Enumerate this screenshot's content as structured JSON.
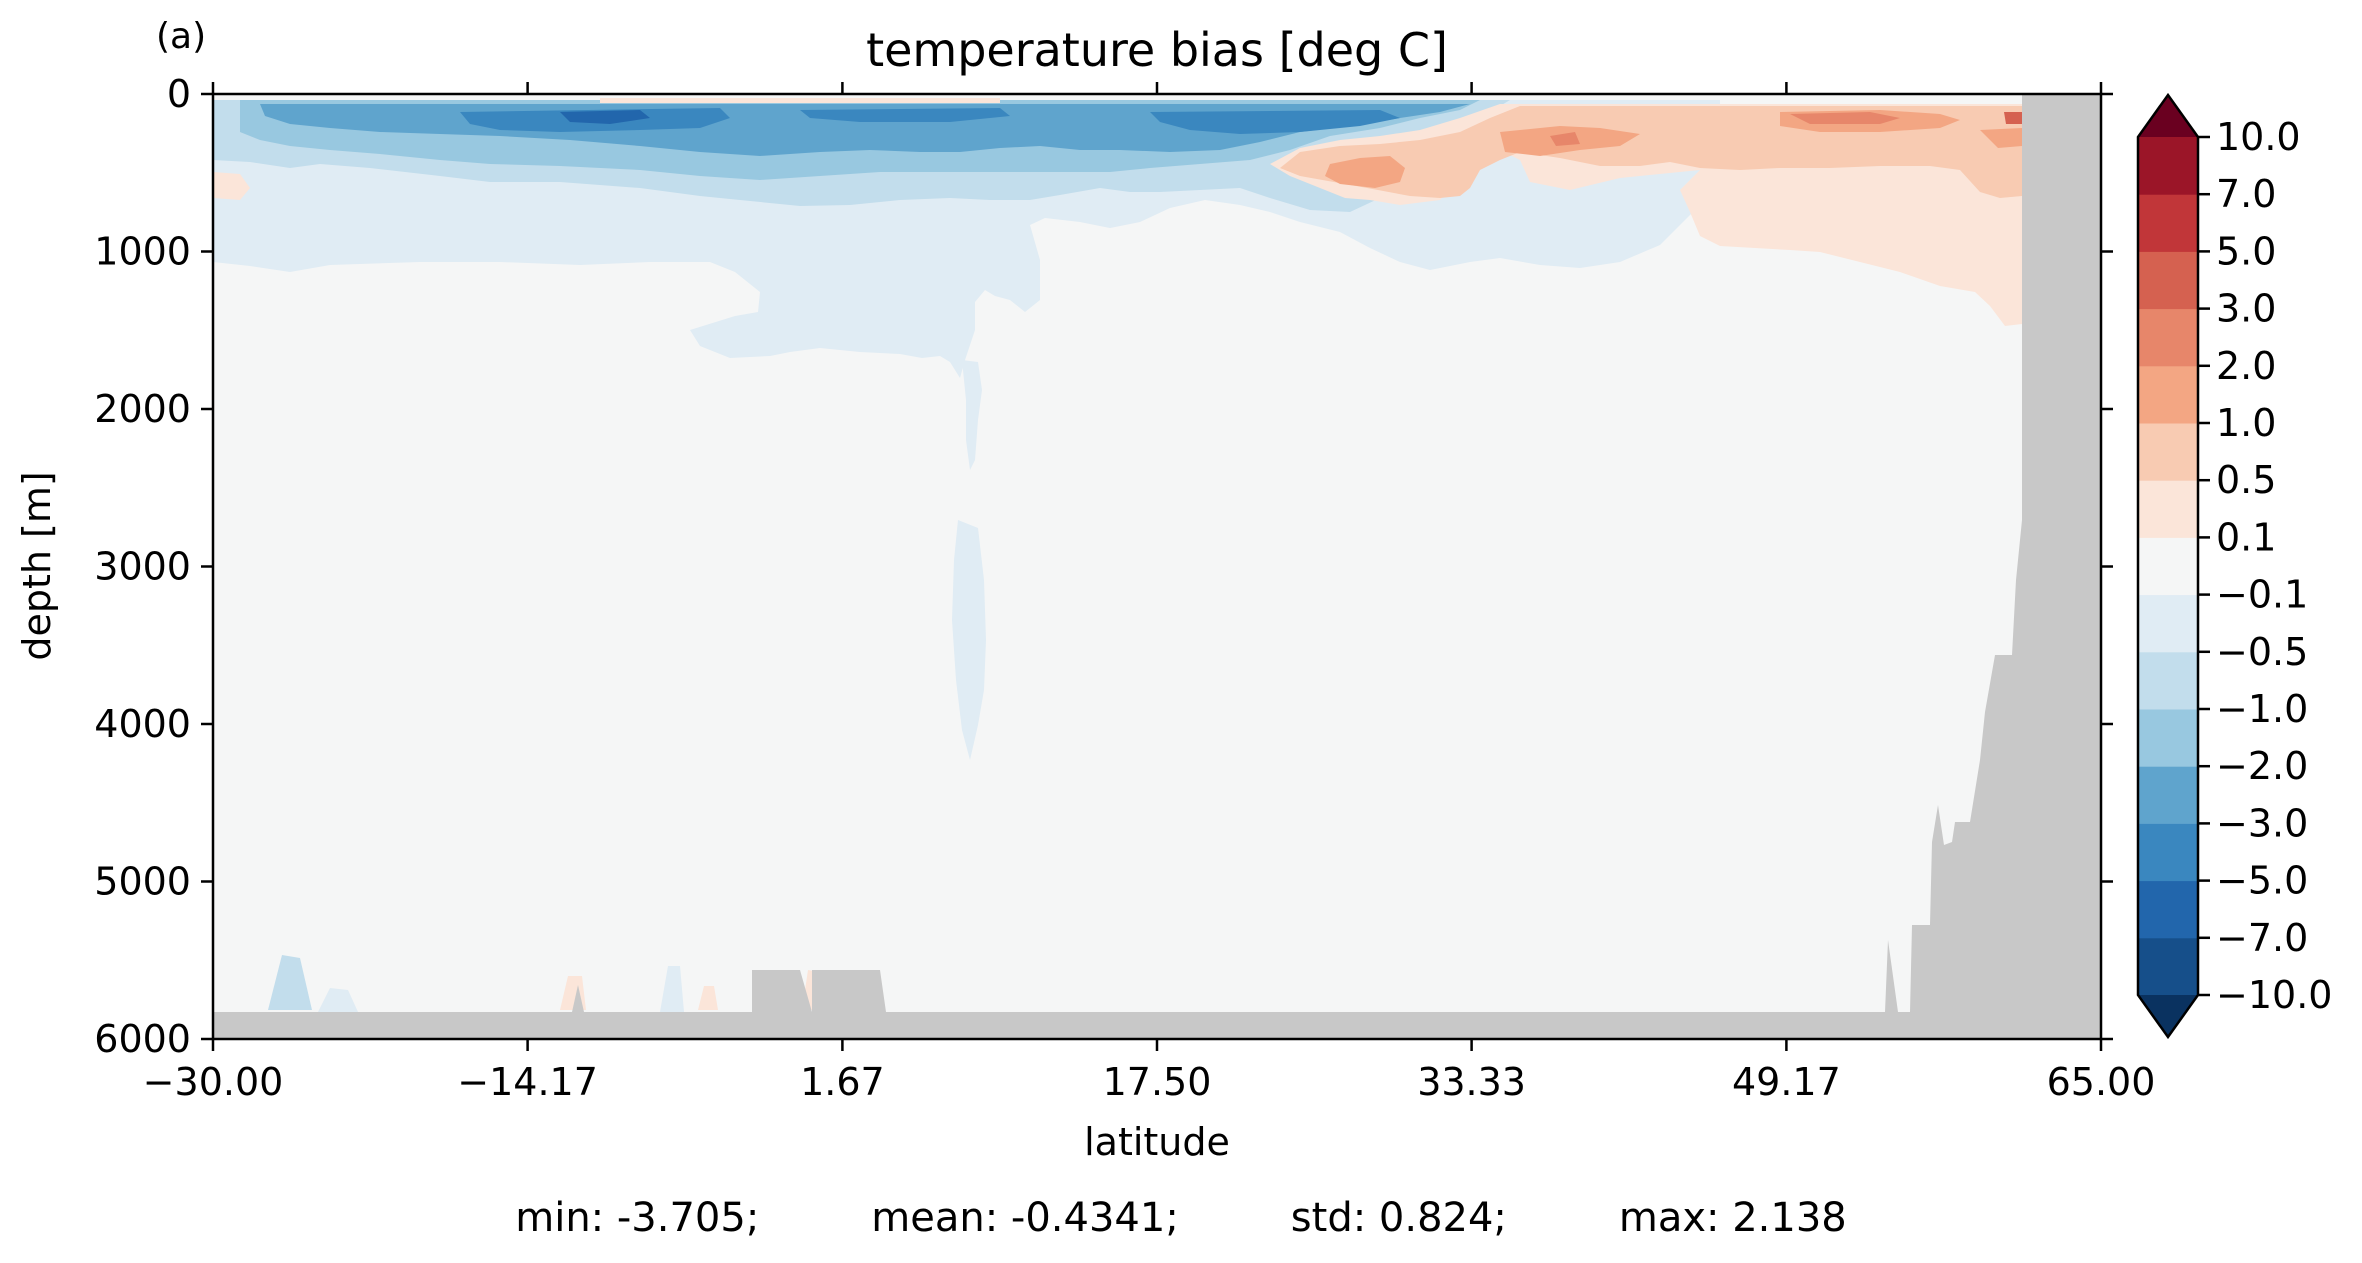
{
  "panel_label": "(a)",
  "chart_data": {
    "type": "heatmap",
    "title": "temperature bias [deg C]",
    "xlabel": "latitude",
    "ylabel": "depth [m]",
    "xlim": [
      -30.0,
      65.0
    ],
    "ylim": [
      6000,
      0
    ],
    "y_inverted": true,
    "x_ticks": [
      "−30.00",
      "−14.17",
      "1.67",
      "17.50",
      "33.33",
      "49.17",
      "65.00"
    ],
    "x_tick_values": [
      -30.0,
      -14.17,
      1.67,
      17.5,
      33.33,
      49.17,
      65.0
    ],
    "y_ticks": [
      "0",
      "1000",
      "2000",
      "3000",
      "4000",
      "5000",
      "6000"
    ],
    "y_tick_values": [
      0,
      1000,
      2000,
      3000,
      4000,
      5000,
      6000
    ],
    "grid": false,
    "colormap": "RdBu_r",
    "colorbar": {
      "extend": "both",
      "levels": [
        -10.0,
        -7.0,
        -5.0,
        -3.0,
        -2.0,
        -1.0,
        -0.5,
        -0.1,
        0.1,
        0.5,
        1.0,
        2.0,
        3.0,
        5.0,
        7.0,
        10.0
      ],
      "labels": [
        "−10.0",
        "−7.0",
        "−5.0",
        "−3.0",
        "−2.0",
        "−1.0",
        "−0.5",
        "−0.1",
        "0.1",
        "0.5",
        "1.0",
        "2.0",
        "3.0",
        "5.0",
        "7.0",
        "10.0"
      ],
      "band_colors": [
        "#164f8a",
        "#2266ac",
        "#3a87bf",
        "#5fa4cd",
        "#98c8e0",
        "#c2ddec",
        "#e0ecf4",
        "#f5f6f6",
        "#fbe5d9",
        "#f8cbb2",
        "#f3a683",
        "#e7866a",
        "#d56150",
        "#c13639",
        "#9b1528"
      ],
      "under_color": "#0a3260",
      "over_color": "#6a0020"
    },
    "land_mask_color": "#c8c8c8",
    "stats": {
      "min": "min: -3.705;",
      "mean": "mean: -0.4341;",
      "std": "std: 0.824;",
      "max": "max: 2.138"
    }
  }
}
